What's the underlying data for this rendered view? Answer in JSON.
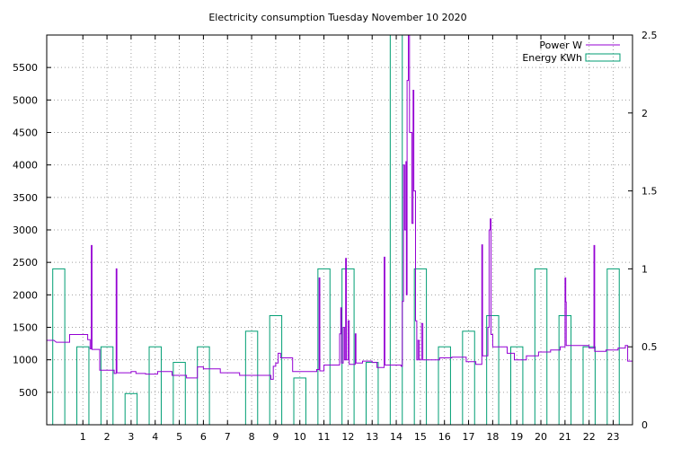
{
  "chart_data": {
    "type": "line",
    "title": "Electricity consumption Tuesday November 10 2020",
    "legend_position": "top-right",
    "grid": true,
    "x_axis": {
      "range": [
        -0.5,
        23.8
      ],
      "ticks": [
        "1",
        "2",
        "3",
        "4",
        "5",
        "6",
        "7",
        "8",
        "9",
        "10",
        "11",
        "12",
        "13",
        "14",
        "15",
        "16",
        "17",
        "18",
        "19",
        "20",
        "21",
        "22",
        "23"
      ]
    },
    "y_axis_left": {
      "range": [
        0,
        6000
      ],
      "ticks": [
        "500",
        "1000",
        "1500",
        "2000",
        "2500",
        "3000",
        "3500",
        "4000",
        "4500",
        "5000",
        "5500"
      ]
    },
    "y_axis_right": {
      "range": [
        0,
        2.5
      ],
      "ticks": [
        "0",
        "0.5",
        "1",
        "1.5",
        "2",
        "2.5"
      ]
    },
    "series": [
      {
        "name": "Power W",
        "color": "#9400d3",
        "axis": "left",
        "points": [
          [
            -0.5,
            1300
          ],
          [
            -0.2,
            1300
          ],
          [
            -0.1,
            1270
          ],
          [
            0.45,
            1270
          ],
          [
            0.45,
            1390
          ],
          [
            1.2,
            1390
          ],
          [
            1.2,
            1310
          ],
          [
            1.3,
            1310
          ],
          [
            1.3,
            1170
          ],
          [
            1.35,
            1170
          ],
          [
            1.35,
            2760
          ],
          [
            1.38,
            2760
          ],
          [
            1.38,
            1160
          ],
          [
            1.7,
            1160
          ],
          [
            1.7,
            840
          ],
          [
            2.3,
            840
          ],
          [
            2.3,
            790
          ],
          [
            2.38,
            790
          ],
          [
            2.38,
            2400
          ],
          [
            2.41,
            2400
          ],
          [
            2.41,
            800
          ],
          [
            3.0,
            800
          ],
          [
            3.0,
            820
          ],
          [
            3.2,
            820
          ],
          [
            3.2,
            790
          ],
          [
            3.6,
            790
          ],
          [
            3.6,
            780
          ],
          [
            4.1,
            780
          ],
          [
            4.1,
            820
          ],
          [
            4.7,
            820
          ],
          [
            4.7,
            760
          ],
          [
            5.3,
            760
          ],
          [
            5.3,
            720
          ],
          [
            5.75,
            720
          ],
          [
            5.75,
            890
          ],
          [
            6.0,
            890
          ],
          [
            6.0,
            860
          ],
          [
            6.7,
            860
          ],
          [
            6.7,
            800
          ],
          [
            7.5,
            800
          ],
          [
            7.5,
            760
          ],
          [
            8.8,
            760
          ],
          [
            8.8,
            700
          ],
          [
            8.9,
            700
          ],
          [
            8.9,
            900
          ],
          [
            9.0,
            900
          ],
          [
            9.0,
            950
          ],
          [
            9.1,
            950
          ],
          [
            9.1,
            1100
          ],
          [
            9.2,
            1100
          ],
          [
            9.2,
            1030
          ],
          [
            9.7,
            1030
          ],
          [
            9.7,
            820
          ],
          [
            10.7,
            820
          ],
          [
            10.7,
            850
          ],
          [
            10.8,
            850
          ],
          [
            10.8,
            2260
          ],
          [
            10.83,
            2260
          ],
          [
            10.83,
            830
          ],
          [
            11.0,
            830
          ],
          [
            11.0,
            920
          ],
          [
            11.65,
            920
          ],
          [
            11.65,
            1400
          ],
          [
            11.7,
            1400
          ],
          [
            11.7,
            1800
          ],
          [
            11.73,
            1800
          ],
          [
            11.73,
            950
          ],
          [
            11.8,
            950
          ],
          [
            11.8,
            1500
          ],
          [
            11.85,
            1500
          ],
          [
            11.85,
            1000
          ],
          [
            11.9,
            1000
          ],
          [
            11.9,
            2560
          ],
          [
            11.93,
            2560
          ],
          [
            11.93,
            1000
          ],
          [
            12.0,
            1000
          ],
          [
            12.0,
            1600
          ],
          [
            12.05,
            1600
          ],
          [
            12.05,
            930
          ],
          [
            12.3,
            930
          ],
          [
            12.3,
            1400
          ],
          [
            12.33,
            1400
          ],
          [
            12.33,
            950
          ],
          [
            12.6,
            950
          ],
          [
            12.6,
            980
          ],
          [
            13.0,
            980
          ],
          [
            13.0,
            960
          ],
          [
            13.2,
            960
          ],
          [
            13.2,
            880
          ],
          [
            13.5,
            880
          ],
          [
            13.5,
            2580
          ],
          [
            13.53,
            2580
          ],
          [
            13.53,
            920
          ],
          [
            14.2,
            920
          ],
          [
            14.2,
            900
          ],
          [
            14.25,
            900
          ],
          [
            14.25,
            1900
          ],
          [
            14.3,
            1900
          ],
          [
            14.3,
            4000
          ],
          [
            14.35,
            4000
          ],
          [
            14.35,
            3000
          ],
          [
            14.4,
            3000
          ],
          [
            14.4,
            4050
          ],
          [
            14.42,
            4050
          ],
          [
            14.42,
            2000
          ],
          [
            14.45,
            2000
          ],
          [
            14.45,
            5300
          ],
          [
            14.5,
            5300
          ],
          [
            14.5,
            6000
          ],
          [
            14.55,
            6000
          ],
          [
            14.55,
            4500
          ],
          [
            14.65,
            4500
          ],
          [
            14.65,
            3100
          ],
          [
            14.7,
            3100
          ],
          [
            14.7,
            5150
          ],
          [
            14.73,
            5150
          ],
          [
            14.73,
            3600
          ],
          [
            14.8,
            3600
          ],
          [
            14.8,
            1600
          ],
          [
            14.85,
            1600
          ],
          [
            14.85,
            1000
          ],
          [
            14.9,
            1000
          ],
          [
            14.9,
            1300
          ],
          [
            14.95,
            1300
          ],
          [
            14.95,
            1000
          ],
          [
            15.05,
            1000
          ],
          [
            15.05,
            1560
          ],
          [
            15.1,
            1560
          ],
          [
            15.1,
            1000
          ],
          [
            15.8,
            1000
          ],
          [
            15.8,
            1030
          ],
          [
            16.3,
            1030
          ],
          [
            16.3,
            1040
          ],
          [
            16.9,
            1040
          ],
          [
            16.9,
            970
          ],
          [
            17.3,
            970
          ],
          [
            17.3,
            930
          ],
          [
            17.55,
            930
          ],
          [
            17.55,
            2770
          ],
          [
            17.58,
            2770
          ],
          [
            17.58,
            1060
          ],
          [
            17.8,
            1060
          ],
          [
            17.8,
            1500
          ],
          [
            17.85,
            1500
          ],
          [
            17.85,
            3000
          ],
          [
            17.9,
            3000
          ],
          [
            17.9,
            3170
          ],
          [
            17.93,
            3170
          ],
          [
            17.93,
            1390
          ],
          [
            18.0,
            1390
          ],
          [
            18.0,
            1200
          ],
          [
            18.6,
            1200
          ],
          [
            18.6,
            1100
          ],
          [
            18.9,
            1100
          ],
          [
            18.9,
            1000
          ],
          [
            19.4,
            1000
          ],
          [
            19.4,
            1060
          ],
          [
            19.9,
            1060
          ],
          [
            19.9,
            1120
          ],
          [
            20.4,
            1120
          ],
          [
            20.4,
            1150
          ],
          [
            20.8,
            1150
          ],
          [
            20.8,
            1200
          ],
          [
            21.0,
            1200
          ],
          [
            21.0,
            2260
          ],
          [
            21.03,
            2260
          ],
          [
            21.03,
            1890
          ],
          [
            21.05,
            1890
          ],
          [
            21.05,
            1220
          ],
          [
            22.0,
            1220
          ],
          [
            22.0,
            1180
          ],
          [
            22.2,
            1180
          ],
          [
            22.2,
            2760
          ],
          [
            22.23,
            2760
          ],
          [
            22.23,
            1130
          ],
          [
            22.7,
            1130
          ],
          [
            22.7,
            1150
          ],
          [
            23.2,
            1150
          ],
          [
            23.2,
            1180
          ],
          [
            23.5,
            1180
          ],
          [
            23.5,
            1220
          ],
          [
            23.6,
            1220
          ],
          [
            23.6,
            980
          ],
          [
            23.8,
            980
          ]
        ]
      },
      {
        "name": "Energy KWh",
        "color": "#009e73",
        "axis": "right",
        "bars": [
          [
            0,
            1.0
          ],
          [
            1,
            0.5
          ],
          [
            2,
            0.5
          ],
          [
            3,
            0.2
          ],
          [
            4,
            0.5
          ],
          [
            5,
            0.4
          ],
          [
            6,
            0.5
          ],
          [
            7,
            0.0
          ],
          [
            8,
            0.6
          ],
          [
            9,
            0.7
          ],
          [
            10,
            0.3
          ],
          [
            11,
            1.0
          ],
          [
            12,
            1.0
          ],
          [
            13,
            0.4
          ],
          [
            14,
            2.5
          ],
          [
            15,
            1.0
          ],
          [
            16,
            0.5
          ],
          [
            17,
            0.6
          ],
          [
            18,
            0.7
          ],
          [
            19,
            0.5
          ],
          [
            20,
            1.0
          ],
          [
            21,
            0.7
          ],
          [
            22,
            0.5
          ],
          [
            23,
            1.0
          ]
        ]
      }
    ]
  }
}
